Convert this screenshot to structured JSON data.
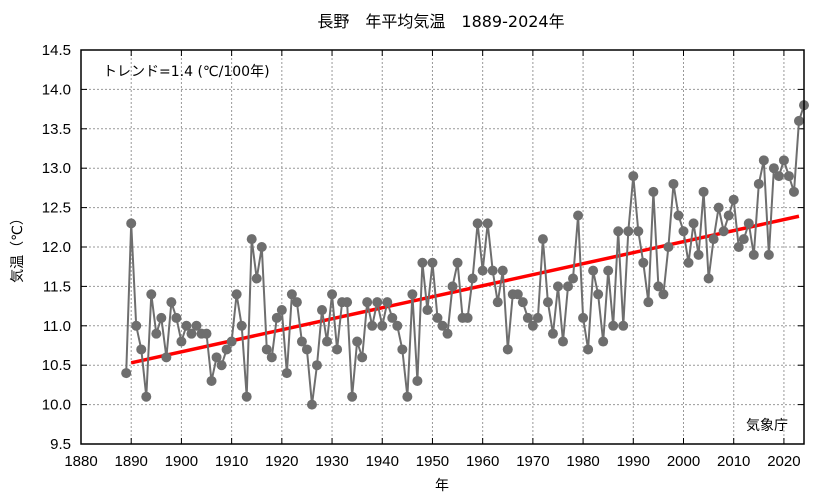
{
  "chart_data": {
    "type": "line",
    "title": "長野　年平均気温　1889-2024年",
    "xlabel": "年",
    "ylabel": "気温（℃）",
    "xlim": [
      1880,
      2024
    ],
    "ylim": [
      9.5,
      14.5
    ],
    "xticks": [
      1880,
      1890,
      1900,
      1910,
      1920,
      1930,
      1940,
      1950,
      1960,
      1970,
      1980,
      1990,
      2000,
      2010,
      2020
    ],
    "xtick_labels": [
      "1880",
      "1890",
      "1900",
      "1910",
      "1920",
      "1930",
      "1940",
      "1950",
      "1960",
      "1970",
      "1980",
      "1990",
      "2000",
      "2010",
      "2020"
    ],
    "yticks": [
      9.5,
      10.0,
      10.5,
      11.0,
      11.5,
      12.0,
      12.5,
      13.0,
      13.5,
      14.0,
      14.5
    ],
    "ytick_labels": [
      "9.5",
      "10.0",
      "10.5",
      "11.0",
      "11.5",
      "12.0",
      "12.5",
      "13.0",
      "13.5",
      "14.0",
      "14.5"
    ],
    "grid": true,
    "annotations": {
      "trend": "トレンド=1.4 (℃/100年)",
      "source": "気象庁"
    },
    "series": [
      {
        "name": "年平均気温",
        "color": "#6e6e6e",
        "x": [
          1889,
          1890,
          1891,
          1892,
          1893,
          1894,
          1895,
          1896,
          1897,
          1898,
          1899,
          1900,
          1901,
          1902,
          1903,
          1904,
          1905,
          1906,
          1907,
          1908,
          1909,
          1910,
          1911,
          1912,
          1913,
          1914,
          1915,
          1916,
          1917,
          1918,
          1919,
          1920,
          1921,
          1922,
          1923,
          1924,
          1925,
          1926,
          1927,
          1928,
          1929,
          1930,
          1931,
          1932,
          1933,
          1934,
          1935,
          1936,
          1937,
          1938,
          1939,
          1940,
          1941,
          1942,
          1943,
          1944,
          1945,
          1946,
          1947,
          1948,
          1949,
          1950,
          1951,
          1952,
          1953,
          1954,
          1955,
          1956,
          1957,
          1958,
          1959,
          1960,
          1961,
          1962,
          1963,
          1964,
          1965,
          1966,
          1967,
          1968,
          1969,
          1970,
          1971,
          1972,
          1973,
          1974,
          1975,
          1976,
          1977,
          1978,
          1979,
          1980,
          1981,
          1982,
          1983,
          1984,
          1985,
          1986,
          1987,
          1988,
          1989,
          1990,
          1991,
          1992,
          1993,
          1994,
          1995,
          1996,
          1997,
          1998,
          1999,
          2000,
          2001,
          2002,
          2003,
          2004,
          2005,
          2006,
          2007,
          2008,
          2009,
          2010,
          2011,
          2012,
          2013,
          2014,
          2015,
          2016,
          2017,
          2018,
          2019,
          2020,
          2021,
          2022,
          2023,
          2024
        ],
        "values": [
          10.4,
          12.3,
          11.0,
          10.7,
          10.1,
          11.4,
          10.9,
          11.1,
          10.6,
          11.3,
          11.1,
          10.8,
          11.0,
          10.9,
          11.0,
          10.9,
          10.9,
          10.3,
          10.6,
          10.5,
          10.7,
          10.8,
          11.4,
          11.0,
          10.1,
          12.1,
          11.6,
          12.0,
          10.7,
          10.6,
          11.1,
          11.2,
          10.4,
          11.4,
          11.3,
          10.8,
          10.7,
          10.0,
          10.5,
          11.2,
          10.8,
          11.4,
          10.7,
          11.3,
          11.3,
          10.1,
          10.8,
          10.6,
          11.3,
          11.0,
          11.3,
          11.0,
          11.3,
          11.1,
          11.0,
          10.7,
          10.1,
          11.4,
          10.3,
          11.8,
          11.2,
          11.8,
          11.1,
          11.0,
          10.9,
          11.5,
          11.8,
          11.1,
          11.1,
          11.6,
          12.3,
          11.7,
          12.3,
          11.7,
          11.3,
          11.7,
          10.7,
          11.4,
          11.4,
          11.3,
          11.1,
          11.0,
          11.1,
          12.1,
          11.3,
          10.9,
          11.5,
          10.8,
          11.5,
          11.6,
          12.4,
          11.1,
          10.7,
          11.7,
          11.4,
          10.8,
          11.7,
          11.0,
          12.2,
          11.0,
          12.2,
          12.9,
          12.2,
          11.8,
          11.3,
          12.7,
          11.5,
          11.4,
          12.0,
          12.8,
          12.4,
          12.2,
          11.8,
          12.3,
          11.9,
          12.7,
          11.6,
          12.1,
          12.5,
          12.2,
          12.4,
          12.6,
          12.0,
          12.1,
          12.3,
          11.9,
          12.8,
          13.1,
          11.9,
          13.0,
          12.9,
          13.1,
          12.9,
          12.7,
          13.6,
          13.8
        ]
      },
      {
        "name": "トレンド",
        "color": "#ff0000",
        "type": "line",
        "x": [
          1890,
          2023
        ],
        "values": [
          10.53,
          12.39
        ]
      }
    ]
  }
}
